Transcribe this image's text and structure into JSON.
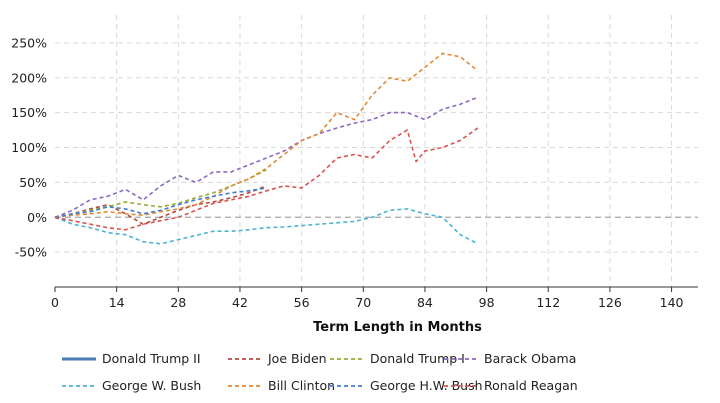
{
  "chart_data": {
    "type": "line",
    "title": "",
    "xlabel": "Term Length in Months",
    "ylabel": "",
    "xlim": [
      0,
      146
    ],
    "ylim": [
      -100,
      290
    ],
    "x_ticks": [
      0,
      14,
      28,
      42,
      56,
      70,
      84,
      98,
      112,
      126,
      140
    ],
    "x_tick_labels": [
      "0",
      "14",
      "28",
      "42",
      "56",
      "70",
      "84",
      "98",
      "112",
      "126",
      "140"
    ],
    "y_ticks": [
      -50,
      0,
      50,
      100,
      150,
      200,
      250
    ],
    "y_tick_labels": [
      "-50%",
      "0%",
      "50%",
      "100%",
      "150%",
      "200%",
      "250%"
    ],
    "y_unit": "%",
    "grid": true,
    "legend_position": "bottom",
    "series": [
      {
        "name": "Donald Trump II",
        "color": "#4a7bb7",
        "style": "solid",
        "x": [
          0,
          1,
          2,
          3
        ],
        "y": [
          0,
          -3,
          -4,
          -1
        ]
      },
      {
        "name": "Joe Biden",
        "color": "#b5473f",
        "style": "dashed",
        "x": [
          0,
          4,
          8,
          12,
          16,
          20,
          24,
          28,
          32,
          36,
          40,
          44,
          48
        ],
        "y": [
          0,
          5,
          12,
          18,
          5,
          -10,
          0,
          10,
          18,
          22,
          28,
          35,
          45
        ]
      },
      {
        "name": "Donald Trump I",
        "color": "#9aab35",
        "style": "dashed",
        "x": [
          0,
          4,
          8,
          12,
          16,
          20,
          24,
          28,
          32,
          36,
          40,
          44,
          48
        ],
        "y": [
          0,
          5,
          10,
          15,
          22,
          18,
          15,
          20,
          28,
          35,
          45,
          55,
          68
        ]
      },
      {
        "name": "Barack Obama",
        "color": "#8a6ac2",
        "style": "dashed",
        "x": [
          0,
          4,
          8,
          12,
          16,
          20,
          24,
          28,
          32,
          36,
          40,
          44,
          48,
          52,
          56,
          60,
          64,
          68,
          72,
          76,
          80,
          84,
          88,
          92,
          96
        ],
        "y": [
          0,
          10,
          25,
          30,
          40,
          25,
          45,
          60,
          50,
          65,
          65,
          75,
          85,
          95,
          110,
          120,
          128,
          135,
          140,
          150,
          150,
          140,
          155,
          162,
          172
        ]
      },
      {
        "name": "George W. Bush",
        "color": "#4db3d1",
        "style": "dashed",
        "x": [
          0,
          4,
          8,
          12,
          16,
          20,
          24,
          28,
          32,
          36,
          40,
          44,
          48,
          52,
          56,
          60,
          64,
          68,
          72,
          76,
          80,
          84,
          88,
          92,
          96
        ],
        "y": [
          0,
          -10,
          -15,
          -22,
          -25,
          -35,
          -38,
          -32,
          -26,
          -20,
          -20,
          -18,
          -15,
          -14,
          -12,
          -10,
          -8,
          -6,
          0,
          10,
          12,
          5,
          0,
          -25,
          -38
        ]
      },
      {
        "name": "Bill Clinton",
        "color": "#e28a36",
        "style": "dashed",
        "x": [
          0,
          4,
          8,
          12,
          16,
          20,
          24,
          28,
          32,
          36,
          40,
          44,
          48,
          52,
          56,
          60,
          64,
          68,
          72,
          76,
          80,
          84,
          88,
          92,
          96
        ],
        "y": [
          0,
          3,
          5,
          8,
          5,
          3,
          8,
          12,
          18,
          30,
          45,
          55,
          70,
          90,
          110,
          120,
          150,
          140,
          175,
          200,
          195,
          215,
          235,
          230,
          210
        ]
      },
      {
        "name": "George H.W. Bush",
        "color": "#3f7fd4",
        "style": "dashed",
        "x": [
          0,
          4,
          8,
          12,
          16,
          20,
          24,
          28,
          32,
          36,
          40,
          44,
          48
        ],
        "y": [
          0,
          5,
          8,
          15,
          12,
          5,
          10,
          18,
          25,
          30,
          35,
          38,
          42
        ]
      },
      {
        "name": "Ronald Reagan",
        "color": "#d9534f",
        "style": "dashed",
        "x": [
          0,
          4,
          8,
          12,
          16,
          20,
          24,
          28,
          32,
          36,
          40,
          44,
          48,
          52,
          56,
          60,
          64,
          68,
          72,
          76,
          80,
          82,
          84,
          88,
          92,
          96
        ],
        "y": [
          0,
          -5,
          -10,
          -15,
          -18,
          -10,
          -5,
          0,
          10,
          20,
          25,
          30,
          38,
          45,
          42,
          60,
          85,
          90,
          85,
          110,
          125,
          80,
          95,
          100,
          110,
          128
        ]
      }
    ]
  }
}
